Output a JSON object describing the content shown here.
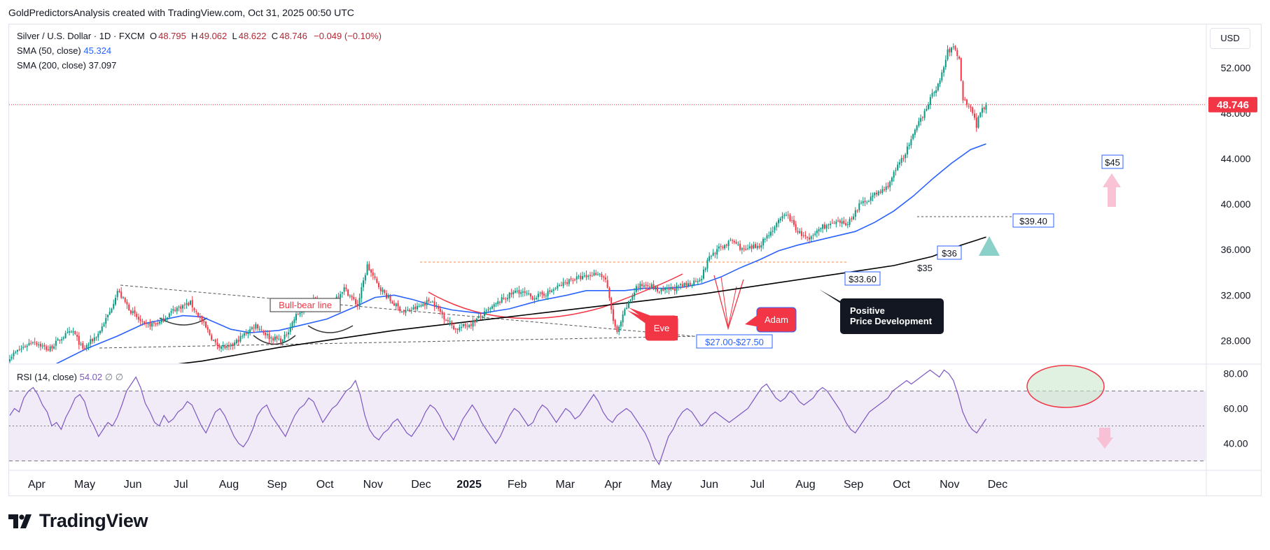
{
  "header": {
    "caption": "GoldPredictorsAnalysis created with TradingView.com, Oct 31, 2025 00:50 UTC"
  },
  "legend": {
    "symbol": "Silver / U.S. Dollar · 1D · FXCM",
    "open_label": "O",
    "open": "48.795",
    "high_label": "H",
    "high": "49.062",
    "low_label": "L",
    "low": "48.622",
    "close_label": "C",
    "close": "48.746",
    "change": "−0.049 (−0.10%)",
    "sma50_label": "SMA (50, close)",
    "sma50_value": "45.324",
    "sma200_label": "SMA (200, close)",
    "sma200_value": "37.097",
    "rsi_label": "RSI (14, close)",
    "rsi_value": "54.02",
    "rsi_extra1": "∅",
    "rsi_extra2": "∅"
  },
  "currency_button": "USD",
  "price_tag": "48.746",
  "colors": {
    "up": "#089981",
    "down": "#f23645",
    "sma50": "#2962ff",
    "sma200": "#000000",
    "rsi": "#7e57c2",
    "rsi_band": "#ede7f6",
    "accent_red": "#f23645"
  },
  "annotations": {
    "bull_bear": "Bull-bear line",
    "eve": "Eve",
    "adam": "Adam",
    "positive_line1": "Positive",
    "positive_line2": "Price Development",
    "range_label": "$27.00-$27.50",
    "level_3360": "$33.60",
    "level_35": "$35",
    "level_36": "$36",
    "level_3940": "$39.40",
    "level_45": "$45"
  },
  "brand": "TradingView",
  "chart_data": {
    "type": "candlestick",
    "title": "Silver / U.S. Dollar · 1D · FXCM",
    "price_axis": {
      "ticks": [
        "52.000",
        "48.000",
        "44.000",
        "40.000",
        "36.000",
        "32.000",
        "28.000"
      ],
      "ylim": [
        26.0,
        55.8
      ]
    },
    "rsi_axis": {
      "ticks": [
        "80.00",
        "60.00",
        "40.00"
      ],
      "ylim": [
        25,
        85
      ],
      "upper_band": 70,
      "mid": 50,
      "lower_band": 30
    },
    "x_axis": {
      "labels": [
        "Apr",
        "May",
        "Jun",
        "Jul",
        "Aug",
        "Sep",
        "Oct",
        "Nov",
        "Dec",
        "2025",
        "Feb",
        "Mar",
        "Apr",
        "May",
        "Jun",
        "Jul",
        "Aug",
        "Sep",
        "Oct",
        "Nov",
        "Dec"
      ],
      "label_index": [
        14,
        39,
        64,
        89,
        114,
        139,
        164,
        189,
        214,
        239,
        264,
        289,
        314,
        339,
        364,
        389,
        414,
        439,
        464,
        489,
        514
      ]
    },
    "price_path": [
      [
        0,
        26.6
      ],
      [
        12,
        28.0
      ],
      [
        20,
        27.2
      ],
      [
        28,
        28.4
      ],
      [
        33,
        28.8
      ],
      [
        38,
        27.2
      ],
      [
        46,
        28.6
      ],
      [
        52,
        30.5
      ],
      [
        56,
        32.4
      ],
      [
        63,
        30.6
      ],
      [
        70,
        29.3
      ],
      [
        78,
        29.6
      ],
      [
        86,
        30.8
      ],
      [
        94,
        31.3
      ],
      [
        101,
        29.4
      ],
      [
        107,
        27.7
      ],
      [
        114,
        27.3
      ],
      [
        121,
        28.4
      ],
      [
        128,
        29.4
      ],
      [
        135,
        28.3
      ],
      [
        142,
        28.0
      ],
      [
        149,
        30.2
      ],
      [
        158,
        31.6
      ],
      [
        166,
        31.1
      ],
      [
        174,
        32.6
      ],
      [
        181,
        31.1
      ],
      [
        186,
        34.6
      ],
      [
        191,
        33.0
      ],
      [
        198,
        31.5
      ],
      [
        205,
        30.5
      ],
      [
        212,
        30.9
      ],
      [
        219,
        31.6
      ],
      [
        226,
        30.1
      ],
      [
        232,
        29.0
      ],
      [
        240,
        29.5
      ],
      [
        248,
        30.5
      ],
      [
        256,
        31.6
      ],
      [
        264,
        32.4
      ],
      [
        272,
        31.8
      ],
      [
        280,
        32.2
      ],
      [
        286,
        32.8
      ],
      [
        292,
        33.4
      ],
      [
        300,
        33.6
      ],
      [
        306,
        34.0
      ],
      [
        310,
        33.4
      ],
      [
        314,
        29.8
      ],
      [
        316,
        28.6
      ],
      [
        320,
        30.6
      ],
      [
        326,
        32.7
      ],
      [
        332,
        33.0
      ],
      [
        338,
        32.3
      ],
      [
        346,
        32.6
      ],
      [
        354,
        33.0
      ],
      [
        360,
        33.6
      ],
      [
        364,
        35.4
      ],
      [
        370,
        36.2
      ],
      [
        376,
        36.8
      ],
      [
        382,
        35.9
      ],
      [
        390,
        36.4
      ],
      [
        398,
        38.0
      ],
      [
        404,
        39.2
      ],
      [
        410,
        37.6
      ],
      [
        416,
        36.8
      ],
      [
        422,
        38.0
      ],
      [
        430,
        38.3
      ],
      [
        436,
        38.3
      ],
      [
        442,
        39.9
      ],
      [
        448,
        40.6
      ],
      [
        456,
        41.4
      ],
      [
        462,
        43.3
      ],
      [
        468,
        45.2
      ],
      [
        474,
        47.5
      ],
      [
        480,
        49.6
      ],
      [
        484,
        50.8
      ],
      [
        488,
        53.4
      ],
      [
        491,
        53.8
      ],
      [
        494,
        52.8
      ],
      [
        496,
        49.2
      ],
      [
        500,
        48.6
      ],
      [
        503,
        46.9
      ],
      [
        505,
        48.2
      ],
      [
        508,
        48.75
      ]
    ],
    "sma50_path": [
      [
        21,
        25.7
      ],
      [
        40,
        27.3
      ],
      [
        56,
        28.4
      ],
      [
        70,
        29.5
      ],
      [
        90,
        30.2
      ],
      [
        100,
        30.1
      ],
      [
        115,
        29.0
      ],
      [
        125,
        28.7
      ],
      [
        140,
        28.9
      ],
      [
        150,
        29.3
      ],
      [
        165,
        29.9
      ],
      [
        180,
        31.0
      ],
      [
        190,
        31.8
      ],
      [
        200,
        32.0
      ],
      [
        210,
        31.6
      ],
      [
        220,
        31.1
      ],
      [
        230,
        30.7
      ],
      [
        245,
        30.4
      ],
      [
        260,
        30.8
      ],
      [
        275,
        31.5
      ],
      [
        290,
        32.0
      ],
      [
        300,
        32.4
      ],
      [
        310,
        32.4
      ],
      [
        320,
        32.4
      ],
      [
        330,
        32.6
      ],
      [
        340,
        32.6
      ],
      [
        350,
        32.7
      ],
      [
        360,
        33.0
      ],
      [
        370,
        33.6
      ],
      [
        380,
        34.4
      ],
      [
        390,
        35.1
      ],
      [
        400,
        35.9
      ],
      [
        410,
        36.4
      ],
      [
        420,
        36.8
      ],
      [
        430,
        37.2
      ],
      [
        440,
        37.6
      ],
      [
        450,
        38.4
      ],
      [
        460,
        39.4
      ],
      [
        470,
        40.7
      ],
      [
        480,
        42.2
      ],
      [
        490,
        43.6
      ],
      [
        500,
        44.8
      ],
      [
        508,
        45.3
      ]
    ],
    "sma200_path": [
      [
        80,
        25.8
      ],
      [
        100,
        26.2
      ],
      [
        120,
        26.8
      ],
      [
        140,
        27.4
      ],
      [
        160,
        27.9
      ],
      [
        180,
        28.4
      ],
      [
        200,
        28.9
      ],
      [
        220,
        29.3
      ],
      [
        240,
        29.7
      ],
      [
        260,
        30.1
      ],
      [
        280,
        30.5
      ],
      [
        300,
        30.9
      ],
      [
        320,
        31.3
      ],
      [
        340,
        31.7
      ],
      [
        360,
        32.1
      ],
      [
        380,
        32.6
      ],
      [
        400,
        33.1
      ],
      [
        420,
        33.6
      ],
      [
        440,
        34.1
      ],
      [
        460,
        34.6
      ],
      [
        480,
        35.4
      ],
      [
        495,
        36.4
      ],
      [
        508,
        37.1
      ]
    ],
    "rsi_values": [
      56,
      60,
      58,
      66,
      70,
      72,
      68,
      62,
      58,
      50,
      52,
      48,
      55,
      60,
      66,
      68,
      64,
      55,
      50,
      44,
      48,
      52,
      50,
      55,
      62,
      70,
      74,
      78,
      72,
      63,
      58,
      52,
      50,
      56,
      52,
      54,
      58,
      60,
      64,
      62,
      56,
      50,
      46,
      52,
      58,
      60,
      56,
      50,
      44,
      40,
      38,
      42,
      48,
      56,
      60,
      62,
      56,
      52,
      48,
      44,
      50,
      56,
      60,
      62,
      66,
      64,
      58,
      52,
      56,
      60,
      62,
      66,
      70,
      72,
      76,
      68,
      56,
      48,
      44,
      42,
      46,
      48,
      52,
      54,
      50,
      46,
      44,
      48,
      52,
      58,
      62,
      60,
      56,
      50,
      46,
      42,
      48,
      54,
      58,
      62,
      58,
      52,
      48,
      44,
      40,
      44,
      50,
      56,
      60,
      58,
      54,
      50,
      52,
      58,
      62,
      60,
      56,
      52,
      56,
      60,
      58,
      54,
      56,
      60,
      64,
      68,
      64,
      58,
      54,
      52,
      56,
      58,
      60,
      58,
      54,
      50,
      46,
      40,
      32,
      28,
      36,
      44,
      48,
      54,
      58,
      60,
      58,
      54,
      50,
      52,
      56,
      58,
      56,
      54,
      52,
      54,
      56,
      58,
      60,
      64,
      68,
      72,
      74,
      70,
      66,
      64,
      66,
      70,
      68,
      64,
      62,
      64,
      66,
      70,
      72,
      70,
      66,
      62,
      58,
      52,
      48,
      46,
      50,
      54,
      58,
      60,
      62,
      64,
      66,
      70,
      72,
      74,
      76,
      74,
      76,
      78,
      80,
      82,
      80,
      78,
      82,
      80,
      76,
      68,
      58,
      52,
      48,
      46,
      50,
      54
    ]
  }
}
